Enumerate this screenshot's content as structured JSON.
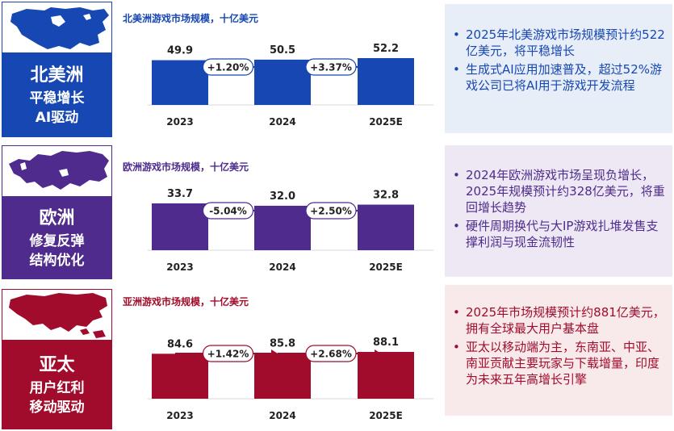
{
  "colors": {
    "na": "#1747b2",
    "eu": "#4e2b8c",
    "ap": "#a10c2c",
    "na_bg": "#e8eef8",
    "eu_bg": "#ede8f4",
    "ap_bg": "#f8eaea"
  },
  "regions": [
    {
      "key": "na",
      "map_icon": "north-america-map-icon",
      "name": "北美洲",
      "subtitle_lines": [
        "平稳增长",
        "AI驱动"
      ],
      "chart_title": "北美洲游戏市场规模，十亿美元",
      "bullets": [
        "2025年北美游戏市场规模预计约522亿美元，将平稳增长",
        "生成式AI应用加速普及，超过52%游戏公司已将AI用于游戏开发流程"
      ]
    },
    {
      "key": "eu",
      "map_icon": "europe-map-icon",
      "name": "欧洲",
      "subtitle_lines": [
        "修复反弹",
        "结构优化"
      ],
      "chart_title": "欧洲游戏市场规模，十亿美元",
      "bullets": [
        "2024年欧洲游戏市场呈现负增长，2025年规模预计约328亿美元，将重回增长趋势",
        "硬件周期换代与大IP游戏扎堆发售支撑利润与现金流韧性"
      ]
    },
    {
      "key": "ap",
      "map_icon": "asia-pacific-map-icon",
      "name": "亚太",
      "subtitle_lines": [
        "用户红利",
        "移动驱动"
      ],
      "chart_title": "亚洲游戏市场规模，十亿美元",
      "bullets": [
        "2025年市场规模预计约881亿美元，拥有全球最大用户基本盘",
        "亚太以移动端为主，东南亚、中亚、南亚贡献主要玩家与下载增量，印度为未来五年高增长引擎"
      ]
    }
  ],
  "chart_data": [
    {
      "type": "bar",
      "title": "北美洲游戏市场规模，十亿美元",
      "categories": [
        "2023",
        "2024",
        "2025E"
      ],
      "values": [
        49.9,
        50.5,
        52.2
      ],
      "value_labels": [
        "49.9",
        "50.5",
        "52.2"
      ],
      "growth_labels": [
        "+1.20%",
        "+3.37%"
      ],
      "ylabel": "十亿美元"
    },
    {
      "type": "bar",
      "title": "欧洲游戏市场规模，十亿美元",
      "categories": [
        "2023",
        "2024",
        "2025E"
      ],
      "values": [
        33.7,
        32.0,
        32.8
      ],
      "value_labels": [
        "33.7",
        "32.0",
        "32.8"
      ],
      "growth_labels": [
        "-5.04%",
        "+2.50%"
      ],
      "ylabel": "十亿美元"
    },
    {
      "type": "bar",
      "title": "亚洲游戏市场规模，十亿美元",
      "categories": [
        "2023",
        "2024",
        "2025E"
      ],
      "values": [
        84.6,
        85.8,
        88.1
      ],
      "value_labels": [
        "84.6",
        "85.8",
        "88.1"
      ],
      "growth_labels": [
        "+1.42%",
        "+2.68%"
      ],
      "ylabel": "十亿美元"
    }
  ]
}
